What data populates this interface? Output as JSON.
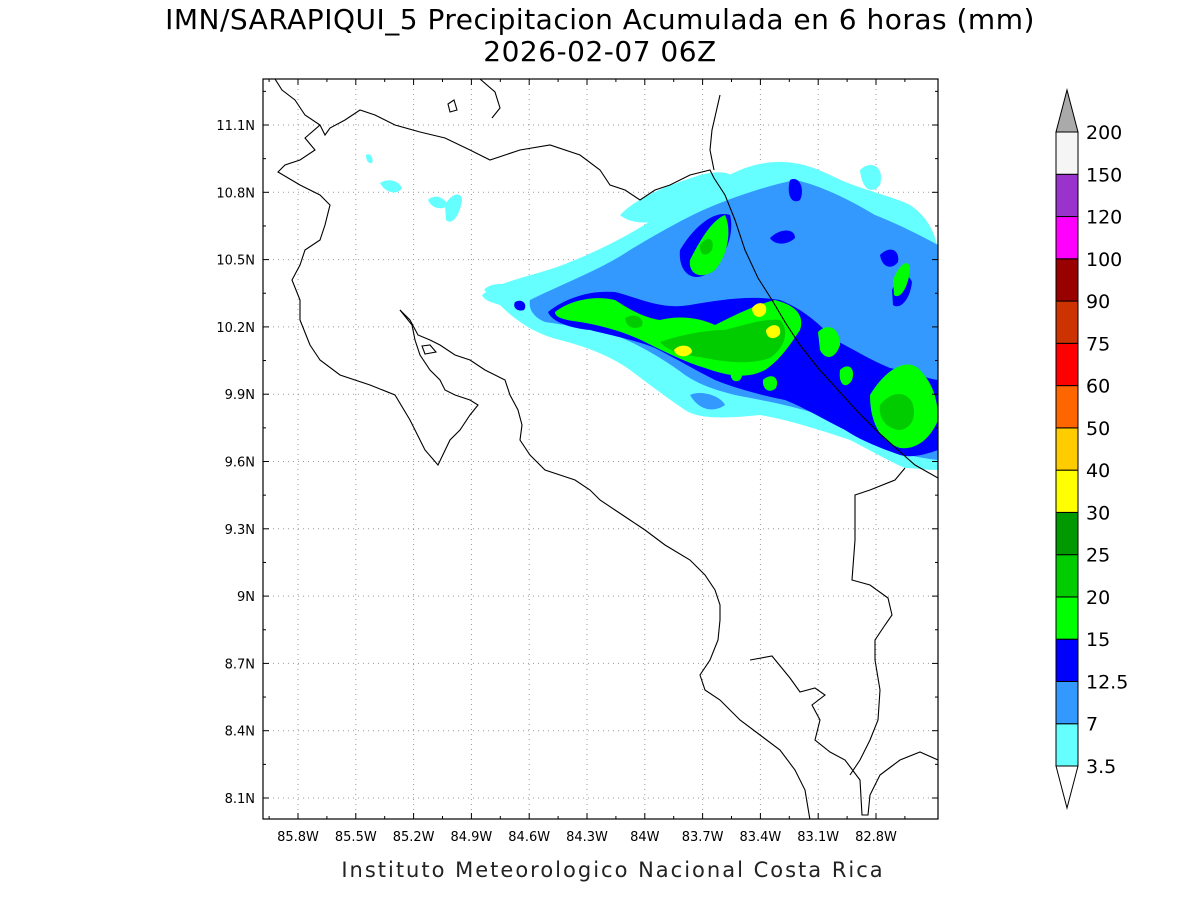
{
  "title": {
    "line1": "IMN/SARAPIQUI_5 Precipitacion Acumulada en 6 horas (mm)",
    "line2": "2026-02-07 06Z"
  },
  "footer": "Instituto Meteorologico Nacional Costa Rica",
  "map": {
    "lon_ticks": [
      "85.8W",
      "85.5W",
      "85.2W",
      "84.9W",
      "84.6W",
      "84.3W",
      "84W",
      "83.7W",
      "83.4W",
      "83.1W",
      "82.8W"
    ],
    "lat_ticks": [
      "11.1N",
      "10.8N",
      "10.5N",
      "10.2N",
      "9.9N",
      "9.6N",
      "9.3N",
      "9N",
      "8.7N",
      "8.4N",
      "8.1N"
    ],
    "grid": "dotted"
  },
  "colorbar": {
    "labels": [
      "3.5",
      "7",
      "12.5",
      "15",
      "20",
      "25",
      "30",
      "40",
      "50",
      "60",
      "75",
      "90",
      "100",
      "120",
      "150",
      "200"
    ],
    "colors": [
      "#66ffff",
      "#3399ff",
      "#0000ff",
      "#00ff00",
      "#00cc00",
      "#009900",
      "#ffff00",
      "#ffcc00",
      "#ff6600",
      "#ff0000",
      "#cc3300",
      "#990000",
      "#ff00ff",
      "#9933cc",
      "#f5f5f5",
      "#aaaaaa"
    ]
  },
  "legend_colors": {
    "light": "#66ffff",
    "mid": "#3399ff",
    "dark": "#0000ff",
    "green": "#00ff00",
    "green2": "#00cc00",
    "yellow": "#ffff00"
  }
}
